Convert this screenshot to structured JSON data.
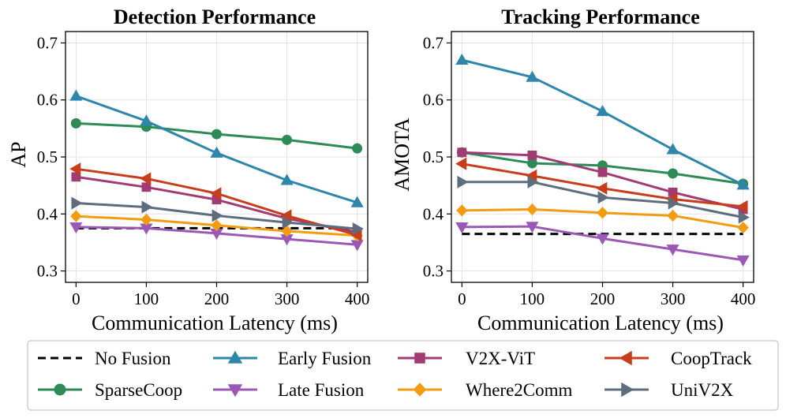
{
  "chart_data": [
    {
      "type": "line",
      "title": "Detection Performance",
      "xlabel": "Communication Latency (ms)",
      "ylabel": "AP",
      "x": [
        0,
        100,
        200,
        300,
        400
      ],
      "xticks": [
        "0",
        "100",
        "200",
        "300",
        "400"
      ],
      "xlim": [
        -15,
        415
      ],
      "ylim": [
        0.28,
        0.72
      ],
      "yticks": [
        "0.3",
        "0.4",
        "0.5",
        "0.6",
        "0.7"
      ],
      "grid": true,
      "series": [
        {
          "name": "No Fusion",
          "values": [
            0.375,
            0.375,
            0.375,
            0.375,
            0.375
          ]
        },
        {
          "name": "SparseCoop",
          "values": [
            0.559,
            0.553,
            0.54,
            0.53,
            0.515
          ]
        },
        {
          "name": "Early Fusion",
          "values": [
            0.607,
            0.563,
            0.507,
            0.459,
            0.42
          ]
        },
        {
          "name": "Late Fusion",
          "values": [
            0.377,
            0.375,
            0.366,
            0.356,
            0.346
          ]
        },
        {
          "name": "V2X-ViT",
          "values": [
            0.465,
            0.447,
            0.425,
            0.392,
            0.368
          ]
        },
        {
          "name": "Where2Comm",
          "values": [
            0.396,
            0.39,
            0.38,
            0.37,
            0.362
          ]
        },
        {
          "name": "CoopTrack",
          "values": [
            0.479,
            0.462,
            0.436,
            0.397,
            0.363
          ]
        },
        {
          "name": "UniV2X",
          "values": [
            0.419,
            0.412,
            0.397,
            0.385,
            0.374
          ]
        }
      ]
    },
    {
      "type": "line",
      "title": "Tracking Performance",
      "xlabel": "Communication Latency (ms)",
      "ylabel": "AMOTA",
      "x": [
        0,
        100,
        200,
        300,
        400
      ],
      "xticks": [
        "0",
        "100",
        "200",
        "300",
        "400"
      ],
      "xlim": [
        -15,
        415
      ],
      "ylim": [
        0.28,
        0.72
      ],
      "yticks": [
        "0.3",
        "0.4",
        "0.5",
        "0.6",
        "0.7"
      ],
      "grid": true,
      "series": [
        {
          "name": "No Fusion",
          "values": [
            0.365,
            0.365,
            0.365,
            0.365,
            0.365
          ]
        },
        {
          "name": "SparseCoop",
          "values": [
            0.508,
            0.489,
            0.485,
            0.471,
            0.453
          ]
        },
        {
          "name": "Early Fusion",
          "values": [
            0.67,
            0.64,
            0.58,
            0.513,
            0.451
          ]
        },
        {
          "name": "Late Fusion",
          "values": [
            0.377,
            0.378,
            0.357,
            0.338,
            0.319
          ]
        },
        {
          "name": "V2X-ViT",
          "values": [
            0.508,
            0.503,
            0.473,
            0.438,
            0.408
          ]
        },
        {
          "name": "Where2Comm",
          "values": [
            0.406,
            0.408,
            0.402,
            0.397,
            0.376
          ]
        },
        {
          "name": "CoopTrack",
          "values": [
            0.488,
            0.467,
            0.445,
            0.426,
            0.413
          ]
        },
        {
          "name": "UniV2X",
          "values": [
            0.456,
            0.456,
            0.429,
            0.419,
            0.394
          ]
        }
      ]
    }
  ],
  "legend": {
    "placement": "bottom",
    "columns": 4,
    "entries": [
      {
        "name": "No Fusion",
        "color": "#000000",
        "marker": "none",
        "dashed": true
      },
      {
        "name": "Early Fusion",
        "color": "#2e86ab",
        "marker": "triangle-up"
      },
      {
        "name": "V2X-ViT",
        "color": "#a23b72",
        "marker": "square"
      },
      {
        "name": "CoopTrack",
        "color": "#c73e1d",
        "marker": "triangle-left"
      },
      {
        "name": "SparseCoop",
        "color": "#2e8b57",
        "marker": "circle"
      },
      {
        "name": "Late Fusion",
        "color": "#9b59b6",
        "marker": "triangle-down"
      },
      {
        "name": "Where2Comm",
        "color": "#f39c12",
        "marker": "diamond"
      },
      {
        "name": "UniV2X",
        "color": "#5d6d7e",
        "marker": "triangle-right"
      }
    ]
  }
}
